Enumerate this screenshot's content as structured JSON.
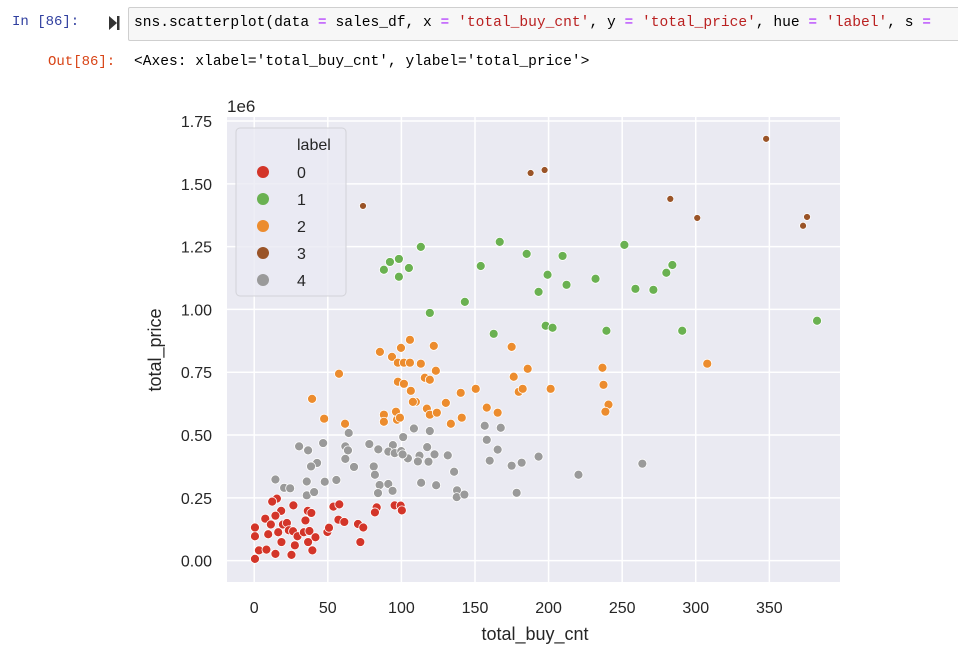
{
  "cell": {
    "in_prompt": "In [86]:",
    "out_prompt": "Out[86]:",
    "code_segments": [
      {
        "t": "sns.scatterplot(data ",
        "c": ""
      },
      {
        "t": "=",
        "c": "op"
      },
      {
        "t": " sales_df, x ",
        "c": ""
      },
      {
        "t": "=",
        "c": "op"
      },
      {
        "t": " ",
        "c": ""
      },
      {
        "t": "'total_buy_cnt'",
        "c": "str"
      },
      {
        "t": ", y ",
        "c": ""
      },
      {
        "t": "=",
        "c": "op"
      },
      {
        "t": " ",
        "c": ""
      },
      {
        "t": "'total_price'",
        "c": "str"
      },
      {
        "t": ", hue ",
        "c": ""
      },
      {
        "t": "=",
        "c": "op"
      },
      {
        "t": " ",
        "c": ""
      },
      {
        "t": "'label'",
        "c": "str"
      },
      {
        "t": ", s ",
        "c": ""
      },
      {
        "t": "=",
        "c": "op"
      }
    ],
    "output_text": "<Axes: xlabel='total_buy_cnt', ylabel='total_price'>"
  },
  "chart_data": {
    "type": "scatter",
    "xlabel": "total_buy_cnt",
    "ylabel": "total_price",
    "y_offset_label": "1e6",
    "xlim": [
      -18.5,
      398
    ],
    "ylim": [
      -0.085,
      1.766
    ],
    "xticks": [
      0,
      50,
      100,
      150,
      200,
      250,
      300,
      350
    ],
    "xtick_labels": [
      "0",
      "50",
      "100",
      "150",
      "200",
      "250",
      "300",
      "350"
    ],
    "yticks": [
      0,
      0.25,
      0.5,
      0.75,
      1.0,
      1.25,
      1.5,
      1.75
    ],
    "ytick_labels": [
      "0.00",
      "0.25",
      "0.50",
      "0.75",
      "1.00",
      "1.25",
      "1.50",
      "1.75"
    ],
    "grid": true,
    "legend": {
      "title": "label",
      "placement": "top-left"
    },
    "series": [
      {
        "name": "0",
        "color": "#d33529",
        "points": [
          [
            15.4,
            0.247
          ],
          [
            12.2,
            0.235
          ],
          [
            26.6,
            0.22
          ],
          [
            18.3,
            0.198
          ],
          [
            14.4,
            0.179
          ],
          [
            7.5,
            0.167
          ],
          [
            36.4,
            0.198
          ],
          [
            38.8,
            0.19
          ],
          [
            34.8,
            0.16
          ],
          [
            53.8,
            0.215
          ],
          [
            57.8,
            0.224
          ],
          [
            57.2,
            0.163
          ],
          [
            61.2,
            0.154
          ],
          [
            70.5,
            0.146
          ],
          [
            74.1,
            0.132
          ],
          [
            72.1,
            0.074
          ],
          [
            83.2,
            0.212
          ],
          [
            82.0,
            0.192
          ],
          [
            95.4,
            0.22
          ],
          [
            99.5,
            0.219
          ],
          [
            100.3,
            0.2
          ],
          [
            0.5,
            0.132
          ],
          [
            0.5,
            0.097
          ],
          [
            11.3,
            0.144
          ],
          [
            19.5,
            0.144
          ],
          [
            22.2,
            0.15
          ],
          [
            23.5,
            0.121
          ],
          [
            16.3,
            0.113
          ],
          [
            9.5,
            0.105
          ],
          [
            26.4,
            0.117
          ],
          [
            29.4,
            0.097
          ],
          [
            33.7,
            0.113
          ],
          [
            37.5,
            0.118
          ],
          [
            41.6,
            0.093
          ],
          [
            49.7,
            0.114
          ],
          [
            50.8,
            0.131
          ],
          [
            18.5,
            0.074
          ],
          [
            27.6,
            0.061
          ],
          [
            36.6,
            0.074
          ],
          [
            3.2,
            0.041
          ],
          [
            8.3,
            0.044
          ],
          [
            14.4,
            0.027
          ],
          [
            25.3,
            0.023
          ],
          [
            39.5,
            0.041
          ],
          [
            0.5,
            0.007
          ]
        ]
      },
      {
        "name": "1",
        "color": "#6ab151",
        "points": [
          [
            113.2,
            1.249
          ],
          [
            92.2,
            1.189
          ],
          [
            98.3,
            1.201
          ],
          [
            88.1,
            1.158
          ],
          [
            105.1,
            1.165
          ],
          [
            98.3,
            1.13
          ],
          [
            166.8,
            1.269
          ],
          [
            153.9,
            1.173
          ],
          [
            185.1,
            1.221
          ],
          [
            209.5,
            1.213
          ],
          [
            199.3,
            1.138
          ],
          [
            212.2,
            1.098
          ],
          [
            193.2,
            1.07
          ],
          [
            143.1,
            1.03
          ],
          [
            119.3,
            0.986
          ],
          [
            162.7,
            0.903
          ],
          [
            198.0,
            0.935
          ],
          [
            202.7,
            0.927
          ],
          [
            251.5,
            1.257
          ],
          [
            231.9,
            1.122
          ],
          [
            259.0,
            1.082
          ],
          [
            271.2,
            1.078
          ],
          [
            280.0,
            1.146
          ],
          [
            284.1,
            1.177
          ],
          [
            239.3,
            0.915
          ],
          [
            290.8,
            0.915
          ],
          [
            382.4,
            0.955
          ]
        ]
      },
      {
        "name": "2",
        "color": "#ec8c2e",
        "points": [
          [
            39.3,
            0.644
          ],
          [
            57.6,
            0.744
          ],
          [
            47.5,
            0.565
          ],
          [
            61.7,
            0.545
          ],
          [
            85.4,
            0.831
          ],
          [
            93.6,
            0.811
          ],
          [
            99.7,
            0.847
          ],
          [
            97.6,
            0.788
          ],
          [
            105.8,
            0.879
          ],
          [
            101.7,
            0.788
          ],
          [
            97.6,
            0.712
          ],
          [
            105.8,
            0.788
          ],
          [
            113.2,
            0.784
          ],
          [
            115.9,
            0.728
          ],
          [
            119.3,
            0.72
          ],
          [
            123.4,
            0.756
          ],
          [
            122.0,
            0.855
          ],
          [
            106.4,
            0.676
          ],
          [
            109.8,
            0.632
          ],
          [
            101.7,
            0.704
          ],
          [
            88.1,
            0.581
          ],
          [
            88.1,
            0.553
          ],
          [
            97.0,
            0.561
          ],
          [
            96.3,
            0.593
          ],
          [
            99.0,
            0.569
          ],
          [
            107.8,
            0.632
          ],
          [
            117.3,
            0.605
          ],
          [
            119.3,
            0.581
          ],
          [
            124.1,
            0.589
          ],
          [
            130.2,
            0.628
          ],
          [
            133.6,
            0.545
          ],
          [
            141.0,
            0.569
          ],
          [
            150.5,
            0.684
          ],
          [
            158.0,
            0.609
          ],
          [
            165.4,
            0.589
          ],
          [
            174.9,
            0.851
          ],
          [
            176.3,
            0.732
          ],
          [
            179.7,
            0.672
          ],
          [
            182.4,
            0.684
          ],
          [
            185.8,
            0.764
          ],
          [
            201.4,
            0.684
          ],
          [
            236.6,
            0.768
          ],
          [
            237.3,
            0.7
          ],
          [
            240.7,
            0.621
          ],
          [
            238.6,
            0.593
          ],
          [
            307.8,
            0.784
          ],
          [
            140.3,
            0.668
          ]
        ]
      },
      {
        "name": "3",
        "color": "#9a5428",
        "points": [
          [
            73.9,
            1.412
          ],
          [
            187.8,
            1.543
          ],
          [
            197.3,
            1.555
          ],
          [
            347.8,
            1.679
          ],
          [
            282.7,
            1.44
          ],
          [
            301.0,
            1.364
          ],
          [
            375.6,
            1.368
          ],
          [
            372.9,
            1.333
          ]
        ]
      },
      {
        "name": "4",
        "color": "#9a9a9a",
        "points": [
          [
            64.2,
            0.508
          ],
          [
            46.8,
            0.468
          ],
          [
            30.5,
            0.455
          ],
          [
            36.6,
            0.439
          ],
          [
            61.9,
            0.455
          ],
          [
            63.7,
            0.439
          ],
          [
            61.9,
            0.405
          ],
          [
            42.7,
            0.389
          ],
          [
            38.6,
            0.375
          ],
          [
            67.8,
            0.373
          ],
          [
            14.4,
            0.323
          ],
          [
            20.3,
            0.29
          ],
          [
            24.4,
            0.288
          ],
          [
            35.7,
            0.315
          ],
          [
            47.9,
            0.314
          ],
          [
            55.8,
            0.321
          ],
          [
            35.7,
            0.26
          ],
          [
            40.7,
            0.273
          ],
          [
            78.2,
            0.464
          ],
          [
            84.3,
            0.443
          ],
          [
            94.2,
            0.46
          ],
          [
            91.1,
            0.434
          ],
          [
            95.4,
            0.428
          ],
          [
            99.9,
            0.436
          ],
          [
            101.2,
            0.492
          ],
          [
            108.5,
            0.526
          ],
          [
            119.3,
            0.516
          ],
          [
            104.4,
            0.407
          ],
          [
            100.8,
            0.423
          ],
          [
            112.3,
            0.418
          ],
          [
            111.2,
            0.395
          ],
          [
            117.5,
            0.452
          ],
          [
            122.5,
            0.423
          ],
          [
            118.4,
            0.394
          ],
          [
            81.2,
            0.375
          ],
          [
            82.0,
            0.342
          ],
          [
            85.2,
            0.301
          ],
          [
            91.1,
            0.305
          ],
          [
            94.0,
            0.278
          ],
          [
            84.1,
            0.269
          ],
          [
            113.4,
            0.31
          ],
          [
            123.6,
            0.3
          ],
          [
            131.5,
            0.419
          ],
          [
            135.8,
            0.354
          ],
          [
            137.8,
            0.28
          ],
          [
            137.6,
            0.253
          ],
          [
            142.8,
            0.263
          ],
          [
            156.6,
            0.537
          ],
          [
            158.0,
            0.481
          ],
          [
            167.5,
            0.529
          ],
          [
            160.0,
            0.398
          ],
          [
            165.4,
            0.442
          ],
          [
            174.9,
            0.378
          ],
          [
            181.7,
            0.39
          ],
          [
            193.2,
            0.414
          ],
          [
            178.3,
            0.27
          ],
          [
            220.3,
            0.342
          ],
          [
            263.7,
            0.386
          ]
        ]
      }
    ]
  }
}
